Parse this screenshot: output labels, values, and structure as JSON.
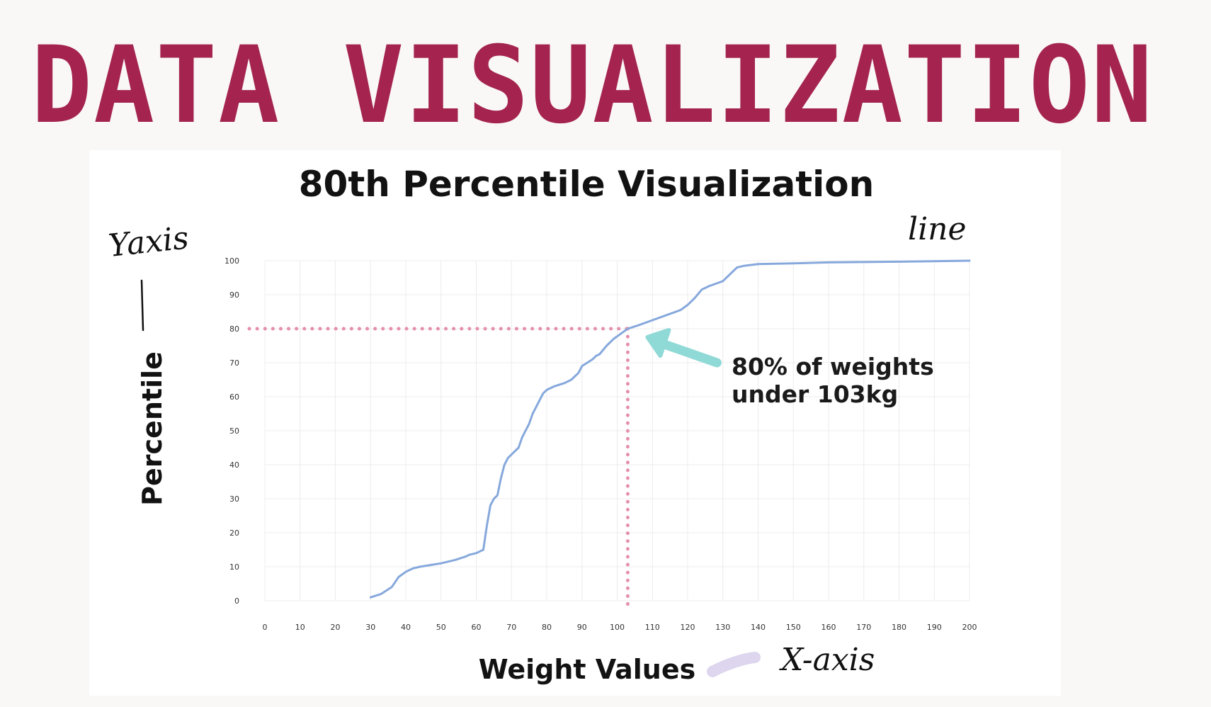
{
  "banner": {
    "text": "DATA VISUALIZATION",
    "color": "#a4244f"
  },
  "handwritten": {
    "y_axis_note": "Yaxis",
    "x_axis_note": "X-axis",
    "line_note": "line"
  },
  "annotation": {
    "line1": "80% of weights",
    "line2": "under 103kg",
    "arrow_color": "#8fd9d6",
    "guide_color": "#e58fad"
  },
  "chart_data": {
    "type": "line",
    "title": "80th Percentile Visualization",
    "xlabel": "Weight Values",
    "ylabel": "Percentile",
    "xlim": [
      0,
      200
    ],
    "ylim": [
      0,
      100
    ],
    "xticks": [
      0,
      10,
      20,
      30,
      40,
      50,
      60,
      70,
      80,
      90,
      100,
      110,
      120,
      130,
      140,
      150,
      160,
      170,
      180,
      190,
      200
    ],
    "yticks": [
      0,
      10,
      20,
      30,
      40,
      50,
      60,
      70,
      80,
      90,
      100
    ],
    "grid": true,
    "line_color": "#86a8dc",
    "series": [
      {
        "x": [
          30,
          33,
          36,
          38,
          40,
          42,
          44,
          47,
          50,
          54,
          57,
          58,
          60,
          62,
          63,
          64,
          65,
          66,
          67,
          68,
          68.5,
          69,
          70,
          71,
          72,
          73,
          74,
          75,
          76,
          77,
          78,
          79,
          80,
          82,
          85,
          87,
          89,
          90,
          93,
          94,
          95,
          97,
          99,
          101,
          103,
          106,
          110,
          114,
          118,
          120,
          122,
          124,
          126,
          130,
          132,
          134,
          136,
          140,
          150,
          160,
          180,
          200
        ],
        "y": [
          1,
          2,
          4,
          7,
          8.5,
          9.5,
          10,
          10.5,
          11,
          12,
          13,
          13.5,
          14,
          15,
          22,
          28,
          30,
          31,
          36,
          40,
          41,
          42,
          43,
          44,
          45,
          48,
          50,
          52,
          55,
          57,
          59,
          61,
          62,
          63,
          64,
          65,
          67,
          69,
          71,
          72,
          72.5,
          75,
          77,
          78.5,
          80,
          81,
          82.5,
          84,
          85.5,
          87,
          89,
          91.5,
          92.5,
          94,
          96,
          98,
          98.5,
          99,
          99.2,
          99.5,
          99.7,
          100
        ]
      }
    ],
    "annotation_point": {
      "x": 103,
      "y": 80
    }
  }
}
